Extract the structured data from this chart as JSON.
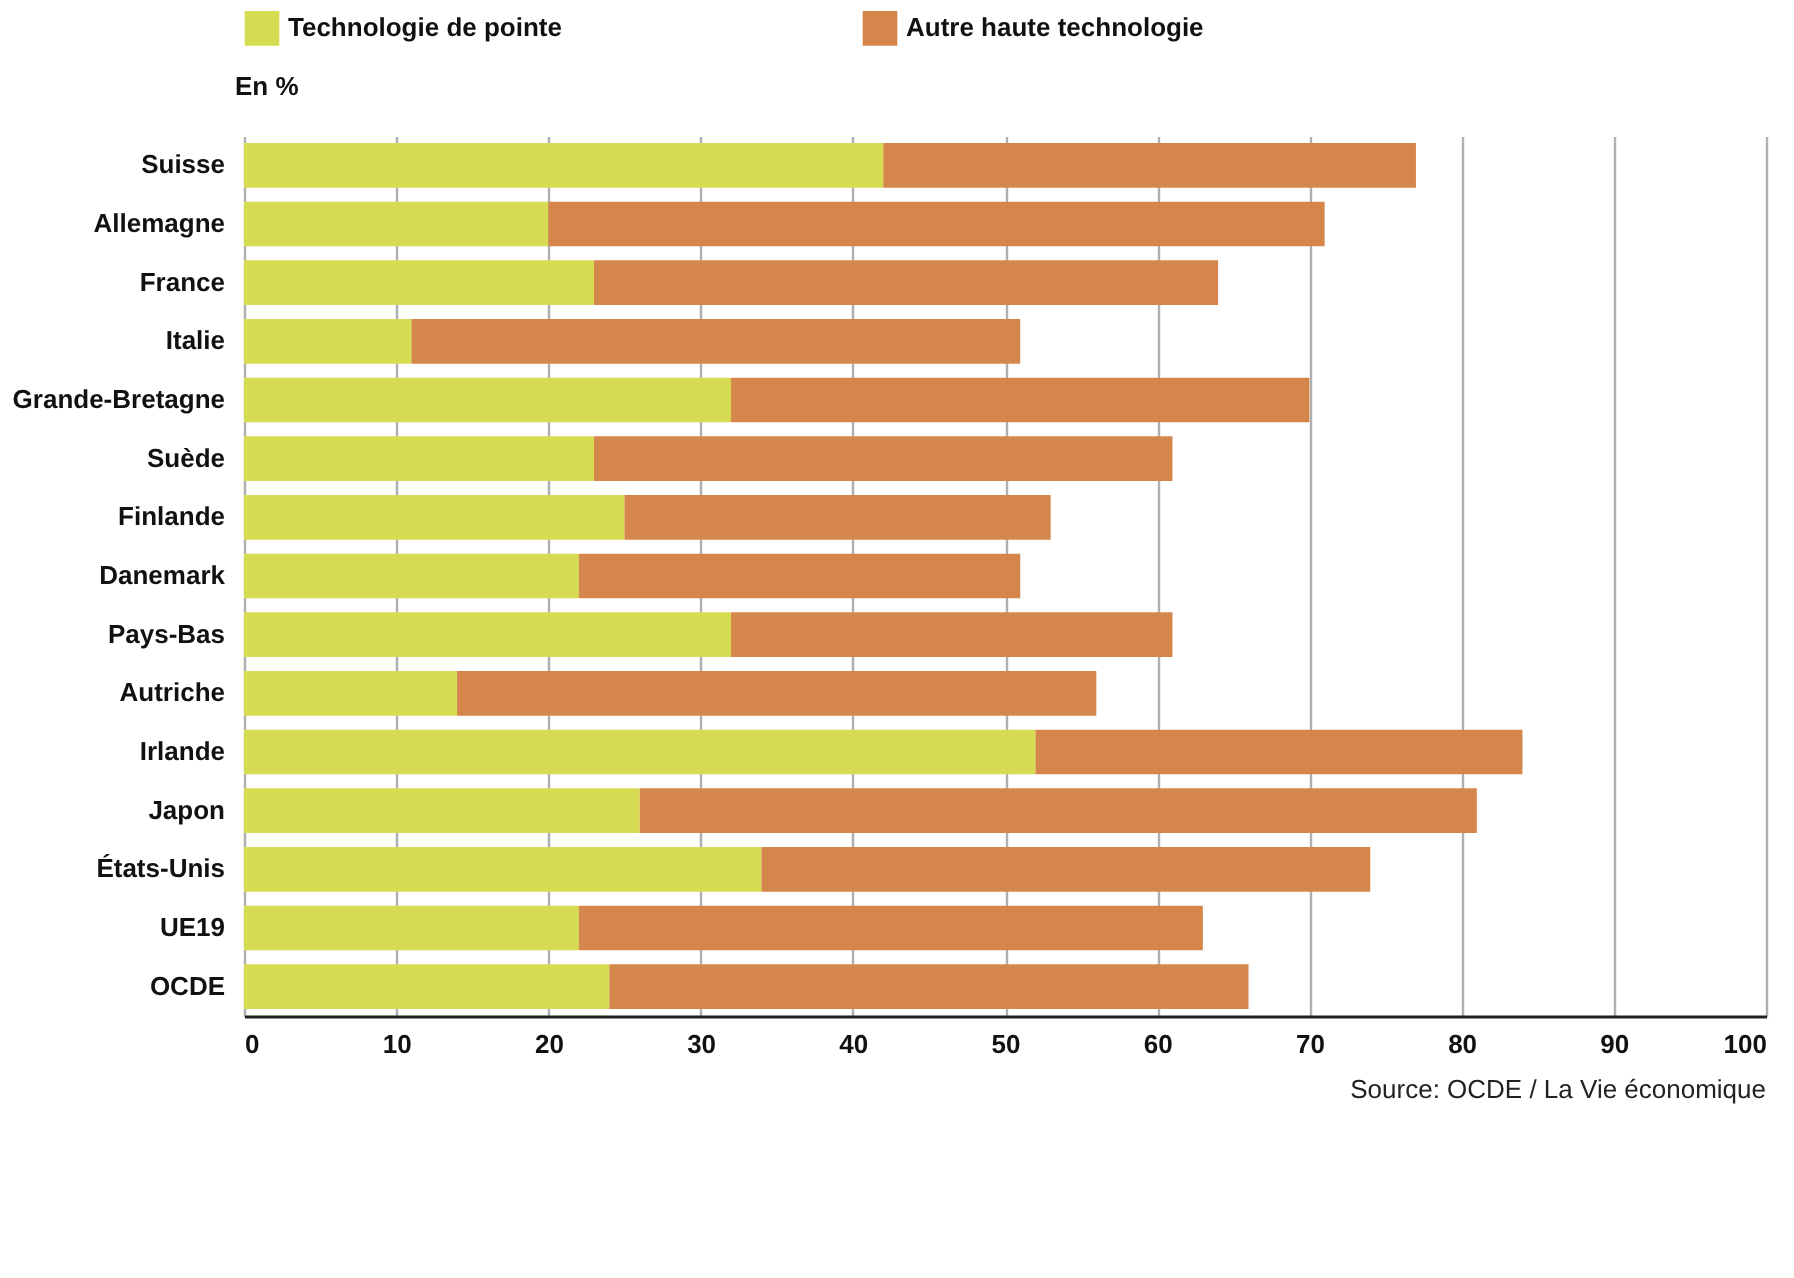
{
  "chart_data": {
    "type": "bar",
    "orientation": "horizontal",
    "stacked": true,
    "ylabel": "En %",
    "categories": [
      "Suisse",
      "Allemagne",
      "France",
      "Italie",
      "Grande-Bretagne",
      "Suède",
      "Finlande",
      "Danemark",
      "Pays-Bas",
      "Autriche",
      "Irlande",
      "Japon",
      "États-Unis",
      "UE19",
      "OCDE"
    ],
    "series": [
      {
        "name": "Technologie de pointe",
        "color": "#d6dc52",
        "values": [
          42,
          20,
          23,
          11,
          32,
          23,
          25,
          22,
          32,
          14,
          52,
          26,
          34,
          22,
          24
        ]
      },
      {
        "name": "Autre haute technologie",
        "color": "#d5864a",
        "values": [
          35,
          51,
          41,
          40,
          38,
          38,
          28,
          29,
          29,
          42,
          32,
          55,
          40,
          41,
          42
        ]
      }
    ],
    "xlim": [
      0,
      100
    ],
    "xticks": [
      0,
      10,
      20,
      30,
      40,
      50,
      60,
      70,
      80,
      90,
      100
    ],
    "grid": "x",
    "legend": "top left",
    "annotations": [
      "Source: OCDE / La Vie économique"
    ]
  }
}
